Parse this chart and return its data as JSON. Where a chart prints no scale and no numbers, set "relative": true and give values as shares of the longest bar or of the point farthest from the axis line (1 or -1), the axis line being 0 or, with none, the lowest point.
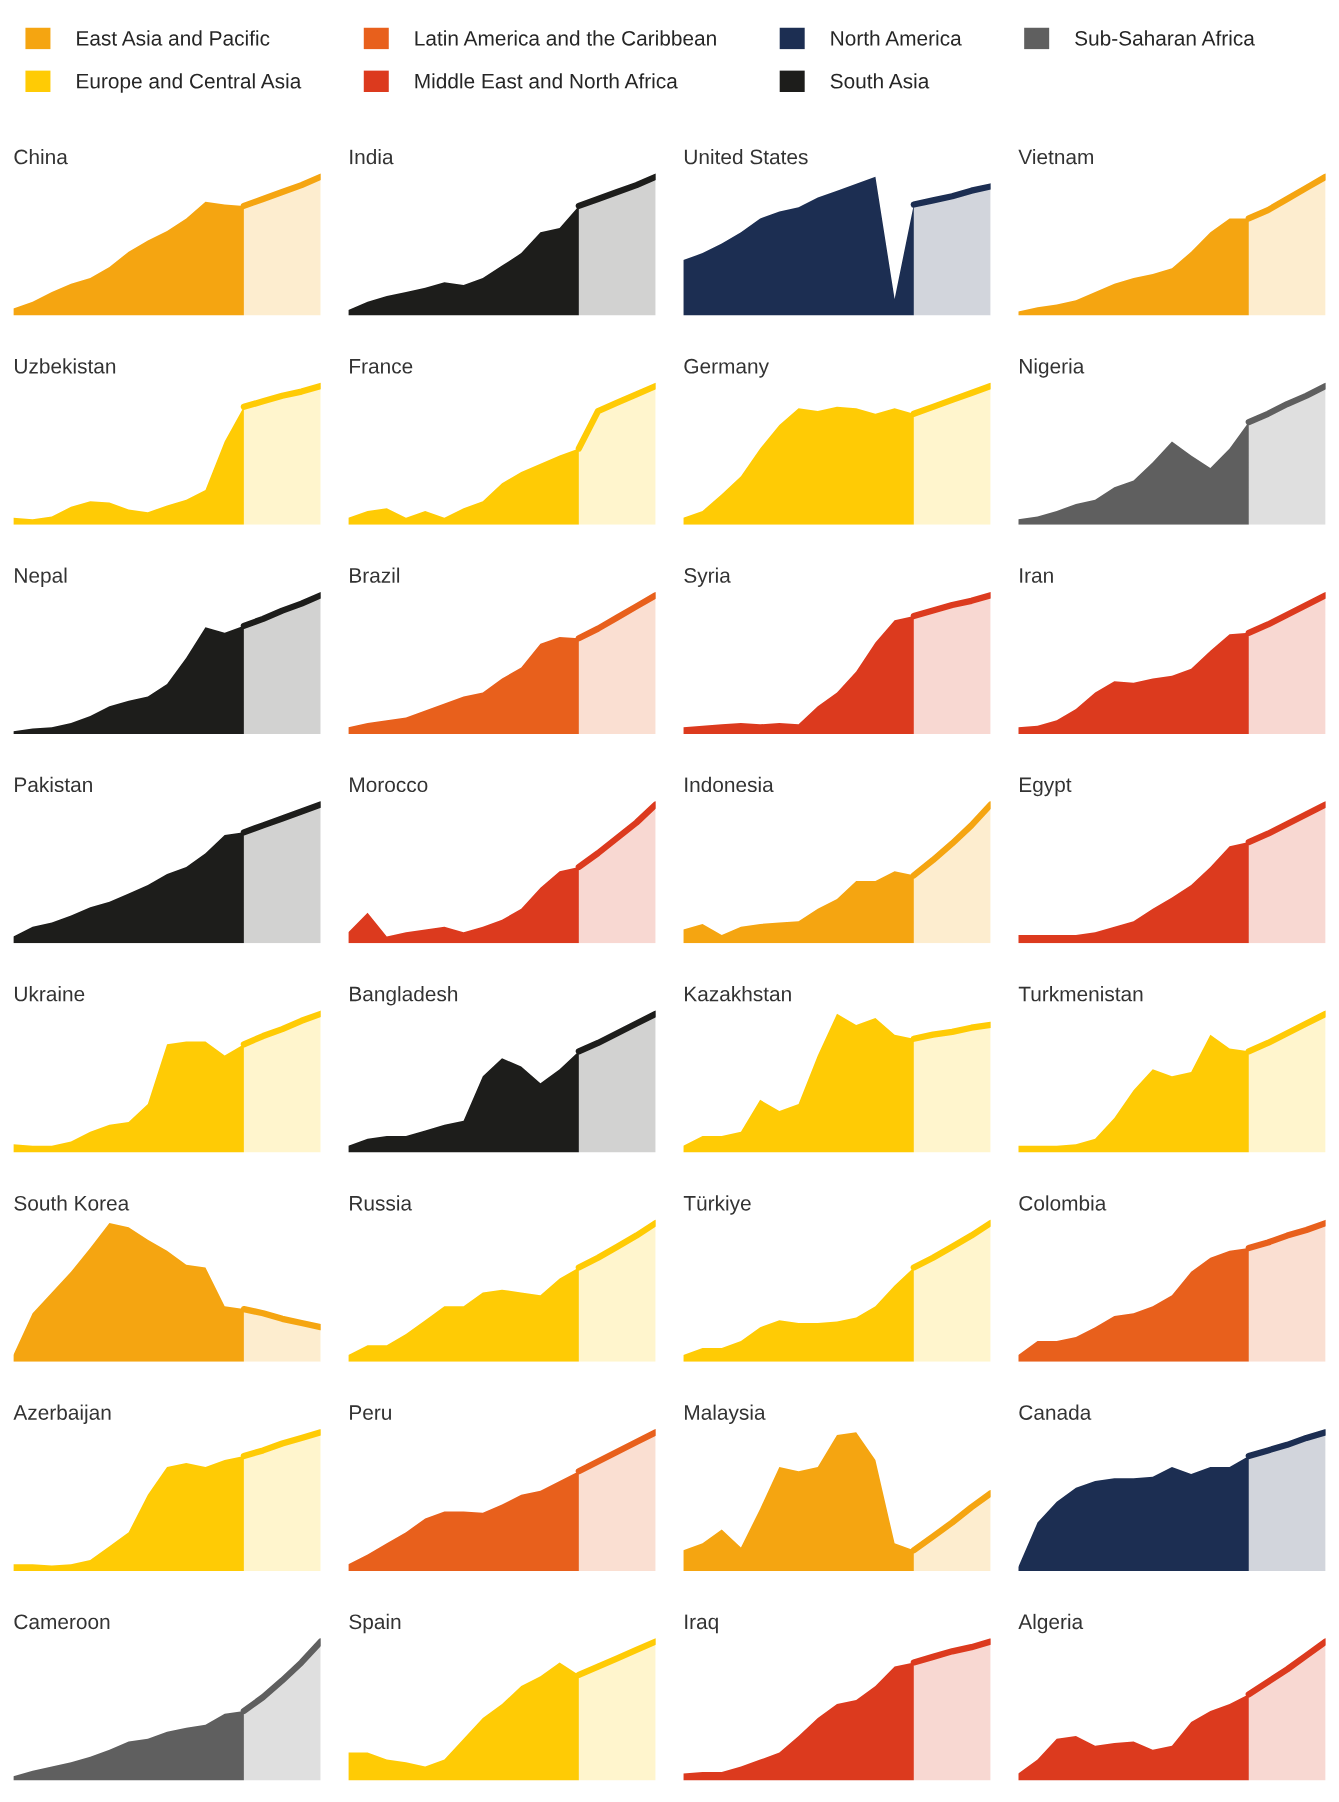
{
  "chart_data": [
    {
      "type": "area",
      "title": "China",
      "relative": true,
      "legend": "top",
      "categories": [
        null,
        null,
        null,
        null,
        null,
        null,
        null,
        null,
        null,
        null,
        null,
        null,
        null,
        null,
        null,
        null,
        null
      ],
      "series": [
        {
          "name": "East Asia and Pacific",
          "color": "#f5a511",
          "values": [
            0.05,
            0.1,
            0.17,
            0.23,
            0.27,
            0.35,
            0.46,
            0.54,
            0.61,
            0.7,
            0.82,
            0.8,
            0.79,
            null,
            null,
            null,
            null
          ]
        },
        {
          "line_style": "solid",
          "color": "#f5a511",
          "values": [
            null,
            null,
            null,
            null,
            null,
            null,
            null,
            null,
            null,
            null,
            null,
            null,
            0.79,
            0.84,
            0.89,
            0.94,
            1.0
          ]
        }
      ]
    },
    {
      "type": "area",
      "title": "India",
      "relative": true,
      "categories": [
        null,
        null,
        null,
        null,
        null,
        null,
        null,
        null,
        null,
        null,
        null,
        null,
        null,
        null,
        null,
        null,
        null
      ],
      "series": [
        {
          "name": "South Asia",
          "color": "#1d1d1b",
          "values": [
            0.04,
            0.1,
            0.14,
            0.17,
            0.2,
            0.24,
            0.22,
            0.27,
            0.36,
            0.45,
            0.6,
            0.63,
            0.79,
            null,
            null,
            null,
            null
          ]
        },
        {
          "line_style": "solid",
          "color": "#1d1d1b",
          "values": [
            null,
            null,
            null,
            null,
            null,
            null,
            null,
            null,
            null,
            null,
            null,
            null,
            0.79,
            0.84,
            0.89,
            0.94,
            1.0
          ]
        }
      ]
    },
    {
      "type": "area",
      "title": "United States",
      "relative": true,
      "categories": [
        null,
        null,
        null,
        null,
        null,
        null,
        null,
        null,
        null,
        null,
        null,
        null,
        null,
        null,
        null,
        null,
        null
      ],
      "series": [
        {
          "name": "North America",
          "color": "#1c2e52",
          "values": [
            0.4,
            0.45,
            0.52,
            0.6,
            0.7,
            0.75,
            0.78,
            0.85,
            0.9,
            0.95,
            1.0,
            0.12,
            0.8,
            null,
            null,
            null,
            null
          ]
        },
        {
          "line_style": "solid",
          "color": "#1c2e52",
          "values": [
            null,
            null,
            null,
            null,
            null,
            null,
            null,
            null,
            null,
            null,
            null,
            null,
            0.8,
            0.83,
            0.86,
            0.9,
            0.93
          ]
        }
      ]
    },
    {
      "type": "area",
      "title": "Vietnam",
      "relative": true,
      "categories": [
        null,
        null,
        null,
        null,
        null,
        null,
        null,
        null,
        null,
        null,
        null,
        null,
        null,
        null,
        null,
        null,
        null
      ],
      "series": [
        {
          "name": "East Asia and Pacific",
          "color": "#f5a511",
          "values": [
            0.03,
            0.06,
            0.08,
            0.11,
            0.17,
            0.23,
            0.27,
            0.3,
            0.34,
            0.46,
            0.6,
            0.7,
            0.7,
            null,
            null,
            null,
            null
          ]
        },
        {
          "line_style": "solid",
          "color": "#f5a511",
          "values": [
            null,
            null,
            null,
            null,
            null,
            null,
            null,
            null,
            null,
            null,
            null,
            null,
            0.7,
            0.76,
            0.84,
            0.92,
            1.0
          ]
        }
      ]
    },
    {
      "type": "area",
      "title": "Uzbekistan",
      "relative": true,
      "categories": [
        null,
        null,
        null,
        null,
        null,
        null,
        null,
        null,
        null,
        null,
        null,
        null,
        null,
        null,
        null,
        null,
        null
      ],
      "series": [
        {
          "name": "Europe and Central Asia",
          "color": "#ffcb05",
          "values": [
            0.05,
            0.04,
            0.06,
            0.13,
            0.17,
            0.16,
            0.11,
            0.09,
            0.14,
            0.18,
            0.25,
            0.6,
            0.85,
            null,
            null,
            null,
            null
          ]
        },
        {
          "line_style": "solid",
          "color": "#ffcb05",
          "values": [
            null,
            null,
            null,
            null,
            null,
            null,
            null,
            null,
            null,
            null,
            null,
            null,
            0.85,
            0.89,
            0.93,
            0.96,
            1.0
          ]
        }
      ]
    },
    {
      "type": "area",
      "title": "France",
      "relative": true,
      "categories": [
        null,
        null,
        null,
        null,
        null,
        null,
        null,
        null,
        null,
        null,
        null,
        null,
        null,
        null,
        null,
        null,
        null
      ],
      "series": [
        {
          "name": "Europe and Central Asia",
          "color": "#ffcb05",
          "values": [
            0.05,
            0.1,
            0.12,
            0.05,
            0.1,
            0.05,
            0.12,
            0.17,
            0.3,
            0.38,
            0.44,
            0.5,
            0.55,
            null,
            null,
            null,
            null
          ]
        },
        {
          "line_style": "solid",
          "color": "#ffcb05",
          "values": [
            null,
            null,
            null,
            null,
            null,
            null,
            null,
            null,
            null,
            null,
            null,
            null,
            0.55,
            0.82,
            0.88,
            0.94,
            1.0
          ]
        }
      ]
    },
    {
      "type": "area",
      "title": "Germany",
      "relative": true,
      "categories": [
        null,
        null,
        null,
        null,
        null,
        null,
        null,
        null,
        null,
        null,
        null,
        null,
        null,
        null,
        null,
        null,
        null
      ],
      "series": [
        {
          "name": "Europe and Central Asia",
          "color": "#ffcb05",
          "values": [
            0.05,
            0.1,
            0.22,
            0.35,
            0.55,
            0.72,
            0.84,
            0.82,
            0.85,
            0.84,
            0.8,
            0.84,
            0.8,
            null,
            null,
            null,
            null
          ]
        },
        {
          "line_style": "solid",
          "color": "#ffcb05",
          "values": [
            null,
            null,
            null,
            null,
            null,
            null,
            null,
            null,
            null,
            null,
            null,
            null,
            0.8,
            0.85,
            0.9,
            0.95,
            1.0
          ]
        }
      ]
    },
    {
      "type": "area",
      "title": "Nigeria",
      "relative": true,
      "categories": [
        null,
        null,
        null,
        null,
        null,
        null,
        null,
        null,
        null,
        null,
        null,
        null,
        null,
        null,
        null,
        null,
        null
      ],
      "series": [
        {
          "name": "Sub-Saharan Africa",
          "color": "#5f5f5f",
          "values": [
            0.04,
            0.06,
            0.1,
            0.15,
            0.18,
            0.27,
            0.32,
            0.45,
            0.6,
            0.5,
            0.41,
            0.55,
            0.74,
            null,
            null,
            null,
            null
          ]
        },
        {
          "line_style": "solid",
          "color": "#5f5f5f",
          "values": [
            null,
            null,
            null,
            null,
            null,
            null,
            null,
            null,
            null,
            null,
            null,
            null,
            0.74,
            0.8,
            0.87,
            0.93,
            1.0
          ]
        }
      ]
    },
    {
      "type": "area",
      "title": "Nepal",
      "relative": true,
      "categories": [
        null,
        null,
        null,
        null,
        null,
        null,
        null,
        null,
        null,
        null,
        null,
        null,
        null,
        null,
        null,
        null,
        null
      ],
      "series": [
        {
          "name": "South Asia",
          "color": "#1d1d1b",
          "values": [
            0.02,
            0.04,
            0.05,
            0.08,
            0.13,
            0.2,
            0.24,
            0.27,
            0.36,
            0.55,
            0.77,
            0.73,
            0.78,
            null,
            null,
            null,
            null
          ]
        },
        {
          "line_style": "solid",
          "color": "#1d1d1b",
          "values": [
            null,
            null,
            null,
            null,
            null,
            null,
            null,
            null,
            null,
            null,
            null,
            null,
            0.78,
            0.83,
            0.89,
            0.94,
            1.0
          ]
        }
      ]
    },
    {
      "type": "area",
      "title": "Brazil",
      "relative": true,
      "categories": [
        null,
        null,
        null,
        null,
        null,
        null,
        null,
        null,
        null,
        null,
        null,
        null,
        null,
        null,
        null,
        null,
        null
      ],
      "series": [
        {
          "name": "Latin America and the Caribbean",
          "color": "#e8601c",
          "values": [
            0.05,
            0.08,
            0.1,
            0.12,
            0.17,
            0.22,
            0.27,
            0.3,
            0.4,
            0.48,
            0.65,
            0.7,
            0.69,
            null,
            null,
            null,
            null
          ]
        },
        {
          "line_style": "solid",
          "color": "#e8601c",
          "values": [
            null,
            null,
            null,
            null,
            null,
            null,
            null,
            null,
            null,
            null,
            null,
            null,
            0.69,
            0.76,
            0.84,
            0.92,
            1.0
          ]
        }
      ]
    },
    {
      "type": "area",
      "title": "Syria",
      "relative": true,
      "categories": [
        null,
        null,
        null,
        null,
        null,
        null,
        null,
        null,
        null,
        null,
        null,
        null,
        null,
        null,
        null,
        null,
        null
      ],
      "series": [
        {
          "name": "Middle East and North Africa",
          "color": "#dc3a1e",
          "values": [
            0.05,
            0.06,
            0.07,
            0.08,
            0.07,
            0.08,
            0.07,
            0.2,
            0.3,
            0.45,
            0.66,
            0.82,
            0.85,
            null,
            null,
            null,
            null
          ]
        },
        {
          "line_style": "solid",
          "color": "#dc3a1e",
          "values": [
            null,
            null,
            null,
            null,
            null,
            null,
            null,
            null,
            null,
            null,
            null,
            null,
            0.85,
            0.89,
            0.93,
            0.96,
            1.0
          ]
        }
      ]
    },
    {
      "type": "area",
      "title": "Iran",
      "relative": true,
      "categories": [
        null,
        null,
        null,
        null,
        null,
        null,
        null,
        null,
        null,
        null,
        null,
        null,
        null,
        null,
        null,
        null,
        null
      ],
      "series": [
        {
          "name": "Middle East and North Africa",
          "color": "#dc3a1e",
          "values": [
            0.05,
            0.06,
            0.1,
            0.18,
            0.3,
            0.38,
            0.37,
            0.4,
            0.42,
            0.47,
            0.6,
            0.72,
            0.73,
            null,
            null,
            null,
            null
          ]
        },
        {
          "line_style": "solid",
          "color": "#dc3a1e",
          "values": [
            null,
            null,
            null,
            null,
            null,
            null,
            null,
            null,
            null,
            null,
            null,
            null,
            0.73,
            0.79,
            0.86,
            0.93,
            1.0
          ]
        }
      ]
    },
    {
      "type": "area",
      "title": "Pakistan",
      "relative": true,
      "categories": [
        null,
        null,
        null,
        null,
        null,
        null,
        null,
        null,
        null,
        null,
        null,
        null,
        null,
        null,
        null,
        null,
        null
      ],
      "series": [
        {
          "name": "South Asia",
          "color": "#1d1d1b",
          "values": [
            0.05,
            0.12,
            0.15,
            0.2,
            0.26,
            0.3,
            0.36,
            0.42,
            0.5,
            0.55,
            0.65,
            0.78,
            0.8,
            null,
            null,
            null,
            null
          ]
        },
        {
          "line_style": "solid",
          "color": "#1d1d1b",
          "values": [
            null,
            null,
            null,
            null,
            null,
            null,
            null,
            null,
            null,
            null,
            null,
            null,
            0.8,
            0.85,
            0.9,
            0.95,
            1.0
          ]
        }
      ]
    },
    {
      "type": "area",
      "title": "Morocco",
      "relative": true,
      "categories": [
        null,
        null,
        null,
        null,
        null,
        null,
        null,
        null,
        null,
        null,
        null,
        null,
        null,
        null,
        null,
        null,
        null
      ],
      "series": [
        {
          "name": "Middle East and North Africa",
          "color": "#dc3a1e",
          "values": [
            0.08,
            0.22,
            0.05,
            0.08,
            0.1,
            0.12,
            0.08,
            0.12,
            0.17,
            0.25,
            0.4,
            0.52,
            0.55,
            null,
            null,
            null,
            null
          ]
        },
        {
          "line_style": "solid",
          "color": "#dc3a1e",
          "values": [
            null,
            null,
            null,
            null,
            null,
            null,
            null,
            null,
            null,
            null,
            null,
            null,
            0.55,
            0.65,
            0.76,
            0.87,
            1.0
          ]
        }
      ]
    },
    {
      "type": "area",
      "title": "Indonesia",
      "relative": true,
      "categories": [
        null,
        null,
        null,
        null,
        null,
        null,
        null,
        null,
        null,
        null,
        null,
        null,
        null,
        null,
        null,
        null,
        null
      ],
      "series": [
        {
          "name": "East Asia and Pacific",
          "color": "#f5a511",
          "values": [
            0.1,
            0.14,
            0.06,
            0.12,
            0.14,
            0.15,
            0.16,
            0.25,
            0.32,
            0.45,
            0.45,
            0.52,
            0.49,
            null,
            null,
            null,
            null
          ]
        },
        {
          "line_style": "solid",
          "color": "#f5a511",
          "values": [
            null,
            null,
            null,
            null,
            null,
            null,
            null,
            null,
            null,
            null,
            null,
            null,
            0.49,
            0.6,
            0.72,
            0.85,
            1.0
          ]
        }
      ]
    },
    {
      "type": "area",
      "title": "Egypt",
      "relative": true,
      "categories": [
        null,
        null,
        null,
        null,
        null,
        null,
        null,
        null,
        null,
        null,
        null,
        null,
        null,
        null,
        null,
        null,
        null
      ],
      "series": [
        {
          "name": "Middle East and North Africa",
          "color": "#dc3a1e",
          "values": [
            0.06,
            0.06,
            0.06,
            0.06,
            0.08,
            0.12,
            0.16,
            0.25,
            0.33,
            0.42,
            0.55,
            0.7,
            0.73,
            null,
            null,
            null,
            null
          ]
        },
        {
          "line_style": "solid",
          "color": "#dc3a1e",
          "values": [
            null,
            null,
            null,
            null,
            null,
            null,
            null,
            null,
            null,
            null,
            null,
            null,
            0.73,
            0.79,
            0.86,
            0.93,
            1.0
          ]
        }
      ]
    },
    {
      "type": "area",
      "title": "Ukraine",
      "relative": true,
      "categories": [
        null,
        null,
        null,
        null,
        null,
        null,
        null,
        null,
        null,
        null,
        null,
        null,
        null,
        null,
        null,
        null,
        null
      ],
      "series": [
        {
          "name": "Europe and Central Asia",
          "color": "#ffcb05",
          "values": [
            0.06,
            0.05,
            0.05,
            0.08,
            0.15,
            0.2,
            0.22,
            0.35,
            0.78,
            0.8,
            0.8,
            0.7,
            0.78,
            null,
            null,
            null,
            null
          ]
        },
        {
          "line_style": "solid",
          "color": "#ffcb05",
          "values": [
            null,
            null,
            null,
            null,
            null,
            null,
            null,
            null,
            null,
            null,
            null,
            null,
            0.78,
            0.84,
            0.89,
            0.95,
            1.0
          ]
        }
      ]
    },
    {
      "type": "area",
      "title": "Bangladesh",
      "relative": true,
      "categories": [
        null,
        null,
        null,
        null,
        null,
        null,
        null,
        null,
        null,
        null,
        null,
        null,
        null,
        null,
        null,
        null,
        null
      ],
      "series": [
        {
          "name": "South Asia",
          "color": "#1d1d1b",
          "values": [
            0.05,
            0.1,
            0.12,
            0.12,
            0.16,
            0.2,
            0.23,
            0.55,
            0.68,
            0.62,
            0.5,
            0.6,
            0.73,
            null,
            null,
            null,
            null
          ]
        },
        {
          "line_style": "solid",
          "color": "#1d1d1b",
          "values": [
            null,
            null,
            null,
            null,
            null,
            null,
            null,
            null,
            null,
            null,
            null,
            null,
            0.73,
            0.79,
            0.86,
            0.93,
            1.0
          ]
        }
      ]
    },
    {
      "type": "area",
      "title": "Kazakhstan",
      "relative": true,
      "categories": [
        null,
        null,
        null,
        null,
        null,
        null,
        null,
        null,
        null,
        null,
        null,
        null,
        null,
        null,
        null,
        null,
        null
      ],
      "series": [
        {
          "name": "Europe and Central Asia",
          "color": "#ffcb05",
          "values": [
            0.05,
            0.12,
            0.12,
            0.15,
            0.38,
            0.3,
            0.35,
            0.7,
            1.0,
            0.92,
            0.97,
            0.85,
            0.82,
            null,
            null,
            null,
            null
          ]
        },
        {
          "line_style": "solid",
          "color": "#ffcb05",
          "values": [
            null,
            null,
            null,
            null,
            null,
            null,
            null,
            null,
            null,
            null,
            null,
            null,
            0.82,
            0.85,
            0.87,
            0.9,
            0.92
          ]
        }
      ]
    },
    {
      "type": "area",
      "title": "Turkmenistan",
      "relative": true,
      "categories": [
        null,
        null,
        null,
        null,
        null,
        null,
        null,
        null,
        null,
        null,
        null,
        null,
        null,
        null,
        null,
        null,
        null
      ],
      "series": [
        {
          "name": "Europe and Central Asia",
          "color": "#ffcb05",
          "values": [
            0.05,
            0.05,
            0.05,
            0.06,
            0.1,
            0.25,
            0.45,
            0.6,
            0.55,
            0.58,
            0.85,
            0.75,
            0.73,
            null,
            null,
            null,
            null
          ]
        },
        {
          "line_style": "solid",
          "color": "#ffcb05",
          "values": [
            null,
            null,
            null,
            null,
            null,
            null,
            null,
            null,
            null,
            null,
            null,
            null,
            0.73,
            0.79,
            0.86,
            0.93,
            1.0
          ]
        }
      ]
    },
    {
      "type": "area",
      "title": "South Korea",
      "relative": true,
      "categories": [
        null,
        null,
        null,
        null,
        null,
        null,
        null,
        null,
        null,
        null,
        null,
        null,
        null,
        null,
        null,
        null,
        null
      ],
      "series": [
        {
          "name": "East Asia and Pacific",
          "color": "#f5a511",
          "values": [
            0.05,
            0.35,
            0.5,
            0.65,
            0.82,
            1.0,
            0.97,
            0.88,
            0.8,
            0.7,
            0.68,
            0.4,
            0.38,
            null,
            null,
            null,
            null
          ]
        },
        {
          "line_style": "solid",
          "color": "#f5a511",
          "values": [
            null,
            null,
            null,
            null,
            null,
            null,
            null,
            null,
            null,
            null,
            null,
            null,
            0.38,
            0.35,
            0.31,
            0.28,
            0.25
          ]
        }
      ]
    },
    {
      "type": "area",
      "title": "Russia",
      "relative": true,
      "categories": [
        null,
        null,
        null,
        null,
        null,
        null,
        null,
        null,
        null,
        null,
        null,
        null,
        null,
        null,
        null,
        null,
        null
      ],
      "series": [
        {
          "name": "Europe and Central Asia",
          "color": "#ffcb05",
          "values": [
            0.05,
            0.12,
            0.12,
            0.2,
            0.3,
            0.4,
            0.4,
            0.5,
            0.52,
            0.5,
            0.48,
            0.6,
            0.68,
            null,
            null,
            null,
            null
          ]
        },
        {
          "line_style": "solid",
          "color": "#ffcb05",
          "values": [
            null,
            null,
            null,
            null,
            null,
            null,
            null,
            null,
            null,
            null,
            null,
            null,
            0.68,
            0.75,
            0.83,
            0.91,
            1.0
          ]
        }
      ]
    },
    {
      "type": "area",
      "title": "Türkiye",
      "relative": true,
      "categories": [
        null,
        null,
        null,
        null,
        null,
        null,
        null,
        null,
        null,
        null,
        null,
        null,
        null,
        null,
        null,
        null,
        null
      ],
      "series": [
        {
          "name": "Europe and Central Asia",
          "color": "#ffcb05",
          "values": [
            0.05,
            0.1,
            0.1,
            0.15,
            0.25,
            0.3,
            0.28,
            0.28,
            0.29,
            0.32,
            0.4,
            0.55,
            0.68,
            null,
            null,
            null,
            null
          ]
        },
        {
          "line_style": "solid",
          "color": "#ffcb05",
          "values": [
            null,
            null,
            null,
            null,
            null,
            null,
            null,
            null,
            null,
            null,
            null,
            null,
            0.68,
            0.75,
            0.83,
            0.91,
            1.0
          ]
        }
      ]
    },
    {
      "type": "area",
      "title": "Colombia",
      "relative": true,
      "categories": [
        null,
        null,
        null,
        null,
        null,
        null,
        null,
        null,
        null,
        null,
        null,
        null,
        null,
        null,
        null,
        null,
        null
      ],
      "series": [
        {
          "name": "Latin America and the Caribbean",
          "color": "#e8601c",
          "values": [
            0.05,
            0.15,
            0.15,
            0.18,
            0.25,
            0.33,
            0.35,
            0.4,
            0.48,
            0.65,
            0.75,
            0.8,
            0.82,
            null,
            null,
            null,
            null
          ]
        },
        {
          "line_style": "solid",
          "color": "#e8601c",
          "values": [
            null,
            null,
            null,
            null,
            null,
            null,
            null,
            null,
            null,
            null,
            null,
            null,
            0.82,
            0.86,
            0.91,
            0.95,
            1.0
          ]
        }
      ]
    },
    {
      "type": "area",
      "title": "Azerbaijan",
      "relative": true,
      "categories": [
        null,
        null,
        null,
        null,
        null,
        null,
        null,
        null,
        null,
        null,
        null,
        null,
        null,
        null,
        null,
        null,
        null
      ],
      "series": [
        {
          "name": "Europe and Central Asia",
          "color": "#ffcb05",
          "values": [
            0.05,
            0.05,
            0.04,
            0.05,
            0.08,
            0.18,
            0.28,
            0.55,
            0.75,
            0.78,
            0.75,
            0.8,
            0.83,
            null,
            null,
            null,
            null
          ]
        },
        {
          "line_style": "solid",
          "color": "#ffcb05",
          "values": [
            null,
            null,
            null,
            null,
            null,
            null,
            null,
            null,
            null,
            null,
            null,
            null,
            0.83,
            0.87,
            0.92,
            0.96,
            1.0
          ]
        }
      ]
    },
    {
      "type": "area",
      "title": "Peru",
      "relative": true,
      "categories": [
        null,
        null,
        null,
        null,
        null,
        null,
        null,
        null,
        null,
        null,
        null,
        null,
        null,
        null,
        null,
        null,
        null
      ],
      "series": [
        {
          "name": "Latin America and the Caribbean",
          "color": "#e8601c",
          "values": [
            0.05,
            0.12,
            0.2,
            0.28,
            0.38,
            0.43,
            0.43,
            0.42,
            0.48,
            0.55,
            0.58,
            0.65,
            0.72,
            null,
            null,
            null,
            null
          ]
        },
        {
          "line_style": "solid",
          "color": "#e8601c",
          "values": [
            null,
            null,
            null,
            null,
            null,
            null,
            null,
            null,
            null,
            null,
            null,
            null,
            0.72,
            0.79,
            0.86,
            0.93,
            1.0
          ]
        }
      ]
    },
    {
      "type": "area",
      "title": "Malaysia",
      "relative": true,
      "categories": [
        null,
        null,
        null,
        null,
        null,
        null,
        null,
        null,
        null,
        null,
        null,
        null,
        null,
        null,
        null,
        null,
        null
      ],
      "series": [
        {
          "name": "East Asia and Pacific",
          "color": "#f5a511",
          "values": [
            0.15,
            0.2,
            0.3,
            0.17,
            0.45,
            0.75,
            0.72,
            0.75,
            0.98,
            1.0,
            0.8,
            0.2,
            0.15,
            null,
            null,
            null,
            null
          ]
        },
        {
          "line_style": "solid",
          "color": "#f5a511",
          "values": [
            null,
            null,
            null,
            null,
            null,
            null,
            null,
            null,
            null,
            null,
            null,
            null,
            0.15,
            0.25,
            0.35,
            0.46,
            0.56
          ]
        }
      ]
    },
    {
      "type": "area",
      "title": "Canada",
      "relative": true,
      "categories": [
        null,
        null,
        null,
        null,
        null,
        null,
        null,
        null,
        null,
        null,
        null,
        null,
        null,
        null,
        null,
        null,
        null
      ],
      "series": [
        {
          "name": "North America",
          "color": "#1c2e52",
          "values": [
            0.03,
            0.35,
            0.5,
            0.6,
            0.65,
            0.67,
            0.67,
            0.68,
            0.75,
            0.7,
            0.75,
            0.75,
            0.83,
            null,
            null,
            null,
            null
          ]
        },
        {
          "line_style": "solid",
          "color": "#1c2e52",
          "values": [
            null,
            null,
            null,
            null,
            null,
            null,
            null,
            null,
            null,
            null,
            null,
            null,
            0.83,
            0.87,
            0.91,
            0.96,
            1.0
          ]
        }
      ]
    },
    {
      "type": "area",
      "title": "Cameroon",
      "relative": true,
      "categories": [
        null,
        null,
        null,
        null,
        null,
        null,
        null,
        null,
        null,
        null,
        null,
        null,
        null,
        null,
        null,
        null,
        null
      ],
      "series": [
        {
          "name": "Sub-Saharan Africa",
          "color": "#5f5f5f",
          "values": [
            0.03,
            0.07,
            0.1,
            0.13,
            0.17,
            0.22,
            0.28,
            0.3,
            0.35,
            0.38,
            0.4,
            0.48,
            0.5,
            null,
            null,
            null,
            null
          ]
        },
        {
          "line_style": "solid",
          "color": "#5f5f5f",
          "values": [
            null,
            null,
            null,
            null,
            null,
            null,
            null,
            null,
            null,
            null,
            null,
            null,
            0.5,
            0.6,
            0.72,
            0.85,
            1.0
          ]
        }
      ]
    },
    {
      "type": "area",
      "title": "Spain",
      "relative": true,
      "categories": [
        null,
        null,
        null,
        null,
        null,
        null,
        null,
        null,
        null,
        null,
        null,
        null,
        null,
        null,
        null,
        null,
        null
      ],
      "series": [
        {
          "name": "Europe and Central Asia",
          "color": "#ffcb05",
          "values": [
            0.2,
            0.2,
            0.15,
            0.13,
            0.1,
            0.15,
            0.3,
            0.45,
            0.55,
            0.68,
            0.75,
            0.85,
            0.76,
            null,
            null,
            null,
            null
          ]
        },
        {
          "line_style": "solid",
          "color": "#ffcb05",
          "values": [
            null,
            null,
            null,
            null,
            null,
            null,
            null,
            null,
            null,
            null,
            null,
            null,
            0.76,
            0.82,
            0.88,
            0.94,
            1.0
          ]
        }
      ]
    },
    {
      "type": "area",
      "title": "Iraq",
      "relative": true,
      "categories": [
        null,
        null,
        null,
        null,
        null,
        null,
        null,
        null,
        null,
        null,
        null,
        null,
        null,
        null,
        null,
        null,
        null
      ],
      "series": [
        {
          "name": "Middle East and North Africa",
          "color": "#dc3a1e",
          "values": [
            0.05,
            0.06,
            0.06,
            0.1,
            0.15,
            0.2,
            0.32,
            0.45,
            0.55,
            0.58,
            0.68,
            0.82,
            0.85,
            null,
            null,
            null,
            null
          ]
        },
        {
          "line_style": "solid",
          "color": "#dc3a1e",
          "values": [
            null,
            null,
            null,
            null,
            null,
            null,
            null,
            null,
            null,
            null,
            null,
            null,
            0.85,
            0.89,
            0.93,
            0.96,
            1.0
          ]
        }
      ]
    },
    {
      "type": "area",
      "title": "Algeria",
      "relative": true,
      "categories": [
        null,
        null,
        null,
        null,
        null,
        null,
        null,
        null,
        null,
        null,
        null,
        null,
        null,
        null,
        null,
        null,
        null
      ],
      "series": [
        {
          "name": "Middle East and North Africa",
          "color": "#dc3a1e",
          "values": [
            0.05,
            0.15,
            0.3,
            0.32,
            0.25,
            0.27,
            0.28,
            0.22,
            0.25,
            0.42,
            0.5,
            0.55,
            0.62,
            null,
            null,
            null,
            null
          ]
        },
        {
          "line_style": "solid",
          "color": "#dc3a1e",
          "values": [
            null,
            null,
            null,
            null,
            null,
            null,
            null,
            null,
            null,
            null,
            null,
            null,
            0.62,
            0.71,
            0.8,
            0.9,
            1.0
          ]
        }
      ]
    }
  ]
}
